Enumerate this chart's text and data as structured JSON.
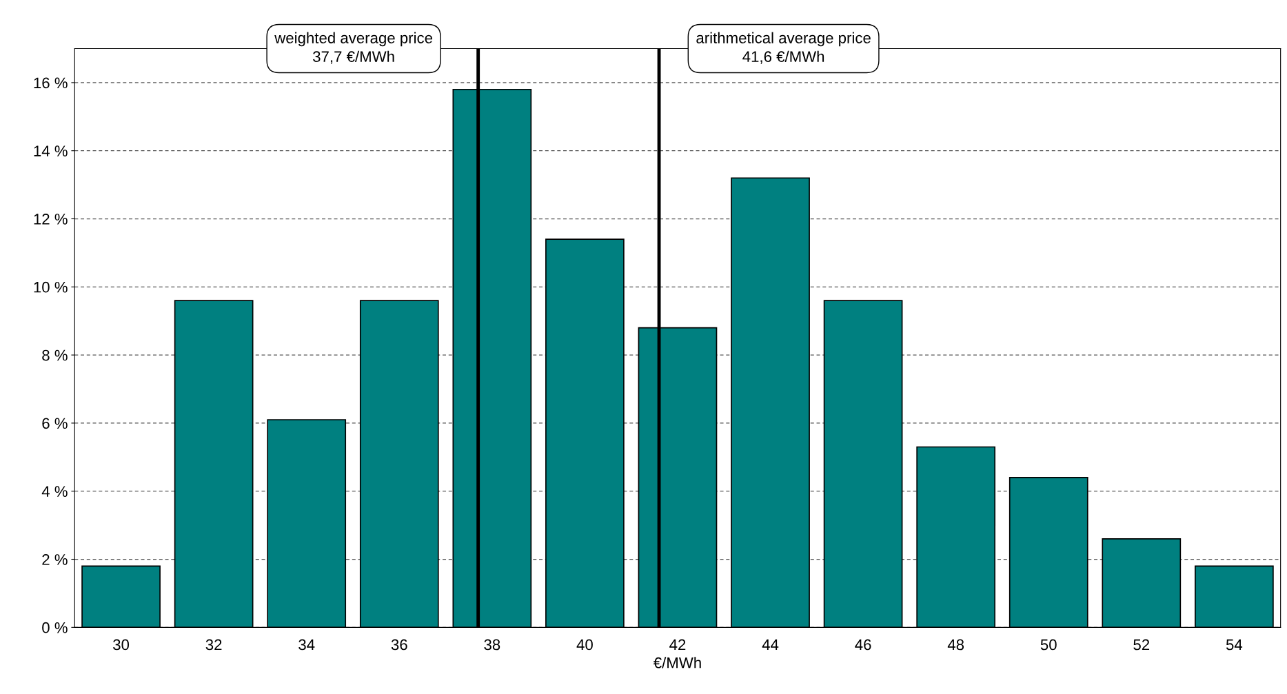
{
  "chart_data": {
    "type": "bar",
    "xlabel": "€/MWh",
    "x": [
      30,
      32,
      34,
      36,
      38,
      40,
      42,
      44,
      46,
      48,
      50,
      52,
      54
    ],
    "values": [
      1.8,
      9.6,
      6.1,
      9.6,
      15.8,
      11.4,
      8.8,
      13.2,
      9.6,
      5.3,
      4.4,
      2.6,
      1.8
    ],
    "color": "#008080",
    "xlim": [
      29,
      55
    ],
    "xticks": [
      30,
      32,
      34,
      36,
      38,
      40,
      42,
      44,
      46,
      48,
      50,
      52,
      54
    ],
    "ylim": [
      0,
      17
    ],
    "yticks": [
      {
        "value": 0,
        "label": "0 %"
      },
      {
        "value": 2,
        "label": "2 %"
      },
      {
        "value": 4,
        "label": "4 %"
      },
      {
        "value": 6,
        "label": "6 %"
      },
      {
        "value": 8,
        "label": "8 %"
      },
      {
        "value": 10,
        "label": "10 %"
      },
      {
        "value": 12,
        "label": "12 %"
      },
      {
        "value": 14,
        "label": "14 %"
      },
      {
        "value": 16,
        "label": "16 %"
      }
    ],
    "grid": "y",
    "ref_lines": [
      {
        "axis": "x",
        "value": 37.7,
        "label": "weighted average price\n37,7 €/MWh",
        "color": "#000000"
      },
      {
        "axis": "x",
        "value": 41.6,
        "label": "arithmetical average price\n41,6 €/MWh",
        "color": "#000000"
      }
    ]
  }
}
